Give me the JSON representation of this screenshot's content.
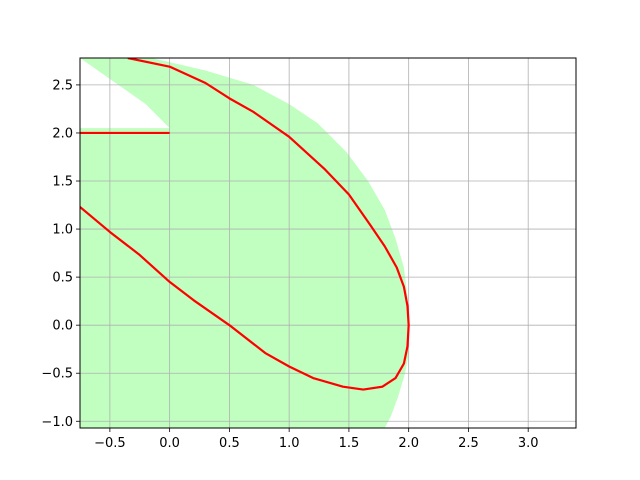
{
  "chart_data": {
    "type": "area",
    "title": "",
    "xlabel": "",
    "ylabel": "",
    "xlim": [
      -0.75,
      3.4
    ],
    "ylim": [
      -1.07,
      2.78
    ],
    "grid": true,
    "xticks": [
      -0.5,
      0.0,
      0.5,
      1.0,
      1.5,
      2.0,
      2.5,
      3.0
    ],
    "xtick_labels": [
      "−0.5",
      "0.0",
      "0.5",
      "1.0",
      "1.5",
      "2.0",
      "2.5",
      "3.0"
    ],
    "yticks": [
      -1.0,
      -0.5,
      0.0,
      0.5,
      1.0,
      1.5,
      2.0,
      2.5
    ],
    "ytick_labels": [
      "−1.0",
      "−0.5",
      "0.0",
      "0.5",
      "1.0",
      "1.5",
      "2.0",
      "2.5"
    ],
    "region": {
      "color": "#c0ffc0",
      "boundary": [
        [
          -0.75,
          -1.07
        ],
        [
          1.8,
          -1.07
        ],
        [
          1.85,
          -0.95
        ],
        [
          1.91,
          -0.75
        ],
        [
          1.97,
          -0.5
        ],
        [
          2.0,
          -0.3
        ],
        [
          2.0,
          0.0
        ],
        [
          1.99,
          0.3
        ],
        [
          1.96,
          0.6
        ],
        [
          1.89,
          0.9
        ],
        [
          1.8,
          1.2
        ],
        [
          1.66,
          1.5
        ],
        [
          1.48,
          1.8
        ],
        [
          1.24,
          2.1
        ],
        [
          1.0,
          2.3
        ],
        [
          0.7,
          2.5
        ],
        [
          0.3,
          2.65
        ],
        [
          -0.15,
          2.78
        ],
        [
          -0.75,
          2.78
        ],
        [
          -0.2,
          2.3
        ],
        [
          -0.0,
          2.05
        ],
        [
          -0.75,
          2.05
        ]
      ]
    },
    "series": [
      {
        "color": "#ff0000",
        "points": [
          [
            -0.35,
            2.78
          ],
          [
            0.0,
            2.69
          ],
          [
            0.3,
            2.52
          ],
          [
            0.5,
            2.36
          ],
          [
            0.7,
            2.22
          ],
          [
            1.0,
            1.96
          ],
          [
            1.3,
            1.62
          ],
          [
            1.5,
            1.36
          ],
          [
            1.68,
            1.04
          ],
          [
            1.8,
            0.82
          ],
          [
            1.9,
            0.6
          ],
          [
            1.96,
            0.4
          ],
          [
            1.99,
            0.2
          ],
          [
            2.0,
            0.0
          ],
          [
            1.99,
            -0.22
          ],
          [
            1.96,
            -0.4
          ],
          [
            1.89,
            -0.55
          ],
          [
            1.78,
            -0.64
          ],
          [
            1.62,
            -0.67
          ],
          [
            1.45,
            -0.64
          ],
          [
            1.2,
            -0.55
          ],
          [
            1.0,
            -0.43
          ],
          [
            0.8,
            -0.29
          ],
          [
            0.5,
            0.0
          ],
          [
            0.2,
            0.26
          ],
          [
            0.0,
            0.45
          ],
          [
            -0.25,
            0.73
          ],
          [
            -0.5,
            0.97
          ],
          [
            -0.75,
            1.23
          ]
        ]
      },
      {
        "color": "#ff0000",
        "points": [
          [
            -0.75,
            2.0
          ],
          [
            0.0,
            2.0
          ]
        ]
      }
    ]
  }
}
